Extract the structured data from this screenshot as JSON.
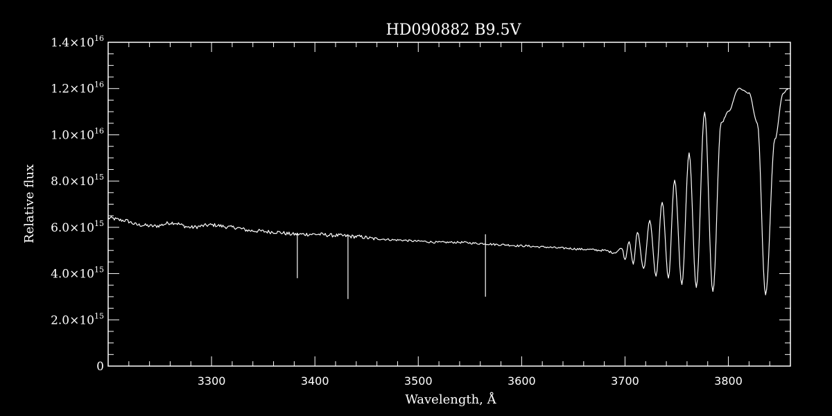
{
  "chart_data": {
    "type": "line",
    "title": "HD090882   B9.5V",
    "xlabel": "Wavelength, Å",
    "ylabel": "Relative flux",
    "xlim": [
      3200,
      3860
    ],
    "ylim": [
      0,
      1.4e+16
    ],
    "x_ticks": [
      3300,
      3400,
      3500,
      3600,
      3700,
      3800
    ],
    "x_tick_labels": [
      "3300",
      "3400",
      "3500",
      "3600",
      "3700",
      "3800"
    ],
    "y_ticks": [
      {
        "value": 0,
        "mantissa": "0",
        "exponent": ""
      },
      {
        "value": 2000000000000000.0,
        "mantissa": "2.0×10",
        "exponent": "15"
      },
      {
        "value": 4000000000000000.0,
        "mantissa": "4.0×10",
        "exponent": "15"
      },
      {
        "value": 6000000000000000.0,
        "mantissa": "6.0×10",
        "exponent": "15"
      },
      {
        "value": 8000000000000000.0,
        "mantissa": "8.0×10",
        "exponent": "15"
      },
      {
        "value": 1e+16,
        "mantissa": "1.0×10",
        "exponent": "16"
      },
      {
        "value": 1.2e+16,
        "mantissa": "1.2×10",
        "exponent": "16"
      },
      {
        "value": 1.4e+16,
        "mantissa": "1.4×10",
        "exponent": "16"
      }
    ],
    "grid": false,
    "colors": {
      "background": "#000000",
      "line": "#ffffff",
      "axes": "#ffffff"
    },
    "series": [
      {
        "x": [
          3200,
          3215,
          3230,
          3245,
          3262,
          3280,
          3300,
          3320,
          3340,
          3360,
          3380,
          3400,
          3420,
          3440,
          3460,
          3480,
          3500,
          3520,
          3540,
          3560,
          3580,
          3600,
          3620,
          3640,
          3660,
          3680,
          3690,
          3697,
          3700,
          3704,
          3708,
          3712,
          3718,
          3724,
          3730,
          3736,
          3742,
          3748,
          3755,
          3762,
          3769,
          3777,
          3785,
          3793,
          3800,
          3810,
          3820,
          3828,
          3836,
          3845,
          3853,
          3858
        ],
        "y": [
          6400000000000000.0,
          6300000000000000.0,
          6100000000000000.0,
          6050000000000000.0,
          6200000000000000.0,
          6000000000000000.0,
          6100000000000000.0,
          6000000000000000.0,
          5850000000000000.0,
          5800000000000000.0,
          5700000000000000.0,
          5700000000000000.0,
          5650000000000000.0,
          5600000000000000.0,
          5500000000000000.0,
          5450000000000000.0,
          5400000000000000.0,
          5350000000000000.0,
          5350000000000000.0,
          5300000000000000.0,
          5250000000000000.0,
          5200000000000000.0,
          5150000000000000.0,
          5100000000000000.0,
          5050000000000000.0,
          5000000000000000.0,
          4900000000000000.0,
          5100000000000000.0,
          4600000000000000.0,
          5400000000000000.0,
          4400000000000000.0,
          5800000000000000.0,
          4200000000000000.0,
          6300000000000000.0,
          3900000000000000.0,
          7100000000000000.0,
          3800000000000000.0,
          8050000000000000.0,
          3500000000000000.0,
          9200000000000000.0,
          3400000000000000.0,
          1.1e+16,
          3200000000000000.0,
          1.05e+16,
          1.1e+16,
          1.2e+16,
          1.18e+16,
          1.05e+16,
          3100000000000000.0,
          9800000000000000.0,
          1.18e+16,
          1.2e+16
        ]
      }
    ],
    "spikes": [
      {
        "x": 3383,
        "y": 3800000000000000.0
      },
      {
        "x": 3432,
        "y": 2900000000000000.0
      },
      {
        "x": 3565,
        "y": 3000000000000000.0
      }
    ]
  }
}
